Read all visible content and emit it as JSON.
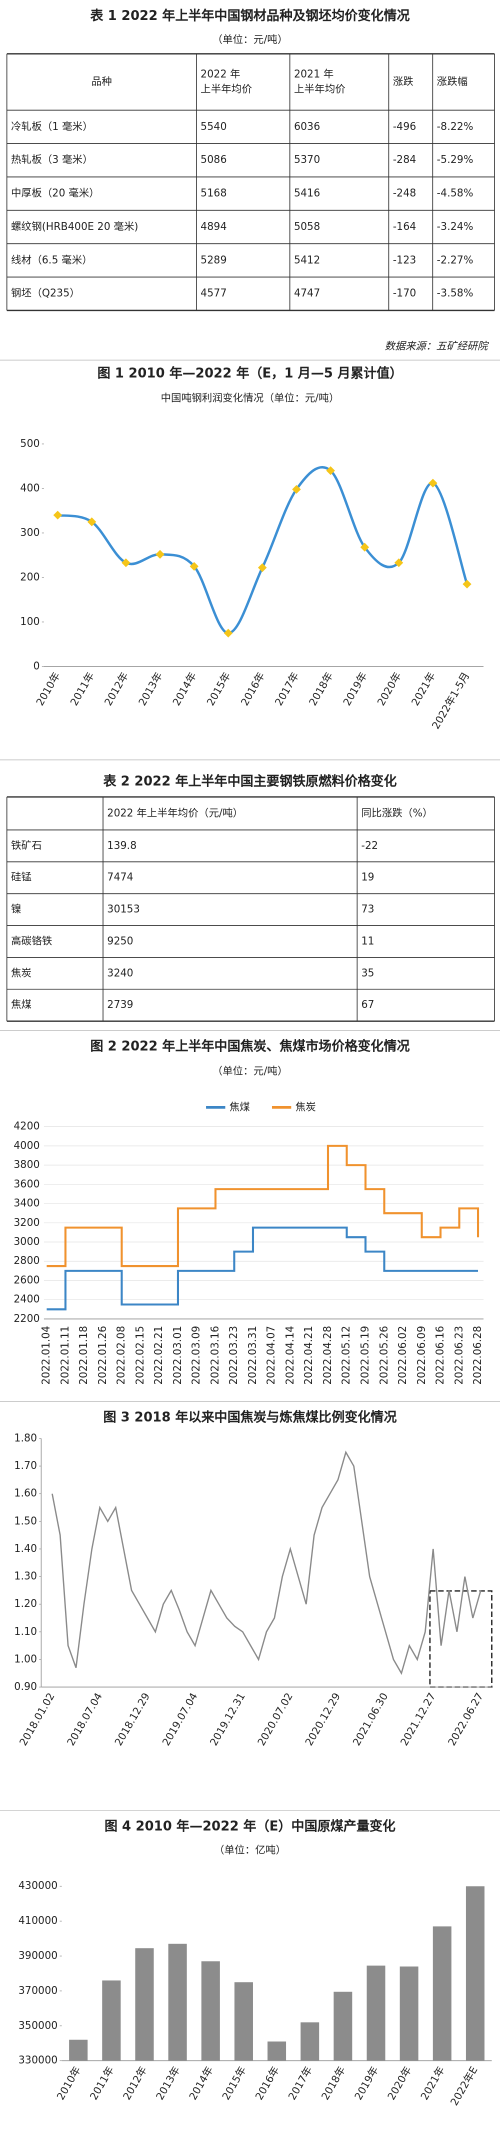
{
  "table1": {
    "title": "表 1 2022 年上半年中国钢材品种及钢坯均价变化情况",
    "unit": "（单位：元/吨）",
    "header": [
      [
        "品种"
      ],
      [
        "2022 年",
        "上半年均价"
      ],
      [
        "2021 年",
        "上半年均价"
      ],
      [
        "涨跌"
      ],
      [
        "涨跌幅"
      ]
    ],
    "rows": [
      [
        "冷轧板（1 毫米）",
        5540,
        6036,
        -496,
        "-8.22%"
      ],
      [
        "热轧板（3 毫米）",
        5086,
        5370,
        -284,
        "-5.29%"
      ],
      [
        "中厚板（20 毫米）",
        5168,
        5416,
        -248,
        "-4.58%"
      ],
      [
        "螺纹钢(HRB400E 20 毫米)",
        4894,
        5058,
        -164,
        "-3.24%"
      ],
      [
        "线材（6.5 毫米）",
        5289,
        5412,
        -123,
        "-2.27%"
      ],
      [
        "钢坯（Q235）",
        4577,
        4747,
        -170,
        "-3.58%"
      ]
    ],
    "source": "数据来源：五矿经研院"
  },
  "table2": {
    "title": "表 2  2022 年上半年中国主要钢铁原燃料价格变化",
    "header": [
      "2022 年上半年均价（元/吨）",
      "同比涨跌（%）"
    ],
    "rows": [
      [
        "铁矿石",
        139.8,
        -22
      ],
      [
        "硅锰",
        7474,
        19
      ],
      [
        "镍",
        30153,
        73
      ],
      [
        "高碳铬铁",
        9250,
        11
      ],
      [
        "焦炭",
        3240,
        35
      ],
      [
        "焦煤",
        2739,
        67
      ]
    ]
  },
  "chart_data": [
    {
      "type": "line",
      "title": "图 1 2010 年—2022 年（E，1 月—5 月累计值）",
      "subtitle": "中国吨钢利润变化情况（单位：元/吨）",
      "categories": [
        "2010年",
        "2011年",
        "2012年",
        "2013年",
        "2014年",
        "2015年",
        "2016年",
        "2017年",
        "2018年",
        "2019年",
        "2020年",
        "2021年",
        "2022年1-5月"
      ],
      "values": [
        340,
        325,
        233,
        252,
        225,
        75,
        222,
        398,
        440,
        268,
        233,
        412,
        185
      ],
      "color": "#3b8fd4",
      "marker_color": "#f5c518",
      "smooth": true,
      "ylim": [
        0,
        500
      ],
      "yticks": [
        0,
        100,
        200,
        300,
        400,
        500
      ],
      "grid": false
    },
    {
      "type": "step",
      "title": "图 2 2022 年上半年中国焦炭、焦煤市场价格变化情况",
      "subtitle": "（单位：元/吨）",
      "categories": [
        "2022.01.04",
        "2022.01.11",
        "2022.01.18",
        "2022.01.26",
        "2022.02.08",
        "2022.02.15",
        "2022.02.21",
        "2022.03.01",
        "2022.03.09",
        "2022.03.16",
        "2022.03.23",
        "2022.03.31",
        "2022.04.07",
        "2022.04.14",
        "2022.04.21",
        "2022.04.28",
        "2022.05.12",
        "2022.05.19",
        "2022.05.26",
        "2022.06.02",
        "2022.06.09",
        "2022.06.16",
        "2022.06.23",
        "2022.06.28"
      ],
      "series": [
        {
          "name": "焦煤",
          "color": "#3c86c6",
          "values": [
            2300,
            2700,
            2700,
            2700,
            2350,
            2350,
            2350,
            2700,
            2700,
            2700,
            2900,
            3150,
            3150,
            3150,
            3150,
            3150,
            3050,
            2900,
            2700,
            2700,
            2700,
            2700,
            2700,
            2700
          ]
        },
        {
          "name": "焦炭",
          "color": "#f0922e",
          "values": [
            2750,
            3150,
            3150,
            3150,
            2750,
            2750,
            2750,
            3350,
            3350,
            3550,
            3550,
            3550,
            3550,
            3550,
            3550,
            4000,
            3800,
            3550,
            3300,
            3300,
            3050,
            3150,
            3350,
            3050
          ]
        }
      ],
      "ylim": [
        2200,
        4200
      ],
      "yticks": [
        2200,
        2400,
        2600,
        2800,
        3000,
        3200,
        3400,
        3600,
        3800,
        4000,
        4200
      ],
      "grid": true
    },
    {
      "type": "line",
      "title": "图 3 2018 年以来中国焦炭与炼焦煤比例变化情况",
      "categories": [
        "2018.01.02",
        null,
        null,
        null,
        null,
        null,
        "2018.07.04",
        null,
        null,
        null,
        null,
        null,
        "2018.12.29",
        null,
        null,
        null,
        null,
        null,
        "2019.07.04",
        null,
        null,
        null,
        null,
        null,
        "2019.12.31",
        null,
        null,
        null,
        null,
        null,
        "2020.07.02",
        null,
        null,
        null,
        null,
        null,
        "2020.12.29",
        null,
        null,
        null,
        null,
        null,
        "2021.06.30",
        null,
        null,
        null,
        null,
        null,
        "2021.12.27",
        null,
        null,
        null,
        null,
        null,
        "2022.06.27"
      ],
      "values": [
        1.6,
        1.45,
        1.05,
        0.97,
        1.2,
        1.4,
        1.55,
        1.5,
        1.55,
        1.4,
        1.25,
        1.2,
        1.15,
        1.1,
        1.2,
        1.25,
        1.18,
        1.1,
        1.05,
        1.15,
        1.25,
        1.2,
        1.15,
        1.12,
        1.1,
        1.05,
        1.0,
        1.1,
        1.15,
        1.3,
        1.4,
        1.3,
        1.2,
        1.45,
        1.55,
        1.6,
        1.65,
        1.75,
        1.7,
        1.5,
        1.3,
        1.2,
        1.1,
        1.0,
        0.95,
        1.05,
        1.0,
        1.1,
        1.4,
        1.05,
        1.25,
        1.1,
        1.3,
        1.15,
        1.25
      ],
      "color": "#8a8a8a",
      "smooth": false,
      "ylim": [
        0.9,
        1.8
      ],
      "yticks": [
        {
          "value": 0.9,
          "label": "0.90"
        },
        {
          "value": 1.0,
          "label": "1.00"
        },
        {
          "value": 1.1,
          "label": "1.10"
        },
        {
          "value": 1.2,
          "label": "1.20"
        },
        {
          "value": 1.3,
          "label": "1.30"
        },
        {
          "value": 1.4,
          "label": "1.40"
        },
        {
          "value": 1.5,
          "label": "1.50"
        },
        {
          "value": 1.6,
          "label": "1.60"
        },
        {
          "value": 1.7,
          "label": "1.70"
        },
        {
          "value": 1.8,
          "label": "1.80"
        }
      ],
      "grid": false
    },
    {
      "type": "bar",
      "title": "图 4 2010 年—2022 年（E）中国原煤产量变化",
      "subtitle": "（单位：亿吨）",
      "categories": [
        "2010年",
        "2011年",
        "2012年",
        "2013年",
        "2014年",
        "2015年",
        "2016年",
        "2017年",
        "2018年",
        "2019年",
        "2020年",
        "2021年",
        "2022年E"
      ],
      "values": [
        342000,
        376000,
        394500,
        397000,
        387000,
        375000,
        341000,
        352000,
        369500,
        384500,
        384000,
        407000,
        430000
      ],
      "color": "#8c8c8c",
      "ylim": [
        330000,
        430000
      ],
      "yticks": [
        330000,
        350000,
        370000,
        390000,
        410000,
        430000
      ],
      "grid": false
    }
  ]
}
